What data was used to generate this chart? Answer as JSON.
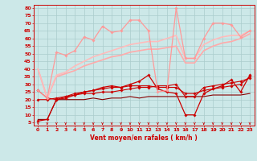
{
  "bg_color": "#cce8e8",
  "grid_color": "#aacccc",
  "xlabel": "Vent moyen/en rafales ( km/h )",
  "x_ticks": [
    0,
    1,
    2,
    3,
    4,
    5,
    6,
    7,
    8,
    9,
    10,
    11,
    12,
    13,
    14,
    15,
    16,
    17,
    18,
    19,
    20,
    21,
    22,
    23
  ],
  "y_ticks": [
    5,
    10,
    15,
    20,
    25,
    30,
    35,
    40,
    45,
    50,
    55,
    60,
    65,
    70,
    75,
    80
  ],
  "xlim": [
    -0.5,
    23.5
  ],
  "ylim": [
    3,
    82
  ],
  "series": [
    {
      "x": [
        0,
        1,
        2,
        3,
        4,
        5,
        6,
        7,
        8,
        9,
        10,
        11,
        12,
        13,
        14,
        15,
        16,
        17,
        18,
        19,
        20,
        21,
        22,
        23
      ],
      "y": [
        7,
        7,
        20,
        20,
        20,
        20,
        21,
        20,
        21,
        21,
        22,
        21,
        22,
        22,
        22,
        22,
        22,
        22,
        22,
        23,
        23,
        23,
        23,
        24
      ],
      "color": "#880000",
      "marker": null,
      "linewidth": 0.8
    },
    {
      "x": [
        0,
        1,
        2,
        3,
        4,
        5,
        6,
        7,
        8,
        9,
        10,
        11,
        12,
        13,
        14,
        15,
        16,
        17,
        18,
        19,
        20,
        21,
        22,
        23
      ],
      "y": [
        26,
        21,
        20,
        22,
        24,
        25,
        26,
        27,
        28,
        28,
        29,
        29,
        29,
        28,
        28,
        28,
        24,
        24,
        26,
        27,
        28,
        29,
        30,
        35
      ],
      "color": "#cc0000",
      "marker": "D",
      "markersize": 1.8,
      "linewidth": 0.8
    },
    {
      "x": [
        0,
        1,
        2,
        3,
        4,
        5,
        6,
        7,
        8,
        9,
        10,
        11,
        12,
        13,
        14,
        15,
        16,
        17,
        18,
        19,
        20,
        21,
        22,
        23
      ],
      "y": [
        20,
        20,
        21,
        22,
        23,
        24,
        24,
        25,
        25,
        26,
        27,
        28,
        28,
        29,
        29,
        30,
        22,
        22,
        28,
        29,
        30,
        31,
        32,
        34
      ],
      "color": "#cc0000",
      "marker": "D",
      "markersize": 1.8,
      "linewidth": 0.8
    },
    {
      "x": [
        0,
        1,
        2,
        3,
        4,
        5,
        6,
        7,
        8,
        9,
        10,
        11,
        12,
        13,
        14,
        15,
        16,
        17,
        18,
        19,
        20,
        21,
        22,
        23
      ],
      "y": [
        6,
        7,
        20,
        21,
        23,
        25,
        26,
        28,
        29,
        28,
        30,
        32,
        36,
        27,
        25,
        24,
        10,
        10,
        24,
        27,
        29,
        33,
        25,
        36
      ],
      "color": "#cc0000",
      "marker": "D",
      "markersize": 1.8,
      "linewidth": 0.9
    },
    {
      "x": [
        0,
        1,
        2,
        3,
        4,
        5,
        6,
        7,
        8,
        9,
        10,
        11,
        12,
        13,
        14,
        15,
        16,
        17,
        18,
        19,
        20,
        21,
        22,
        23
      ],
      "y": [
        26,
        21,
        51,
        49,
        52,
        61,
        59,
        68,
        64,
        65,
        72,
        72,
        65,
        25,
        26,
        80,
        47,
        47,
        60,
        70,
        70,
        69,
        61,
        65
      ],
      "color": "#ff9999",
      "marker": "D",
      "markersize": 1.8,
      "linewidth": 0.9
    },
    {
      "x": [
        0,
        1,
        2,
        3,
        4,
        5,
        6,
        7,
        8,
        9,
        10,
        11,
        12,
        13,
        14,
        15,
        16,
        17,
        18,
        19,
        20,
        21,
        22,
        23
      ],
      "y": [
        40,
        21,
        35,
        37,
        39,
        42,
        44,
        46,
        48,
        49,
        51,
        52,
        53,
        53,
        54,
        55,
        44,
        44,
        52,
        55,
        57,
        58,
        60,
        63
      ],
      "color": "#ffaaaa",
      "marker": null,
      "linewidth": 1.2
    },
    {
      "x": [
        0,
        1,
        2,
        3,
        4,
        5,
        6,
        7,
        8,
        9,
        10,
        11,
        12,
        13,
        14,
        15,
        16,
        17,
        18,
        19,
        20,
        21,
        22,
        23
      ],
      "y": [
        40,
        21,
        36,
        38,
        42,
        45,
        48,
        50,
        52,
        54,
        56,
        57,
        58,
        58,
        60,
        62,
        47,
        47,
        56,
        59,
        61,
        62,
        62,
        65
      ],
      "color": "#ffbbbb",
      "marker": null,
      "linewidth": 1.2
    }
  ],
  "arrow_color": "#cc0000",
  "tick_color": "#cc0000",
  "label_color": "#cc0000",
  "tick_fontsize": 4.5,
  "label_fontsize": 5.5
}
